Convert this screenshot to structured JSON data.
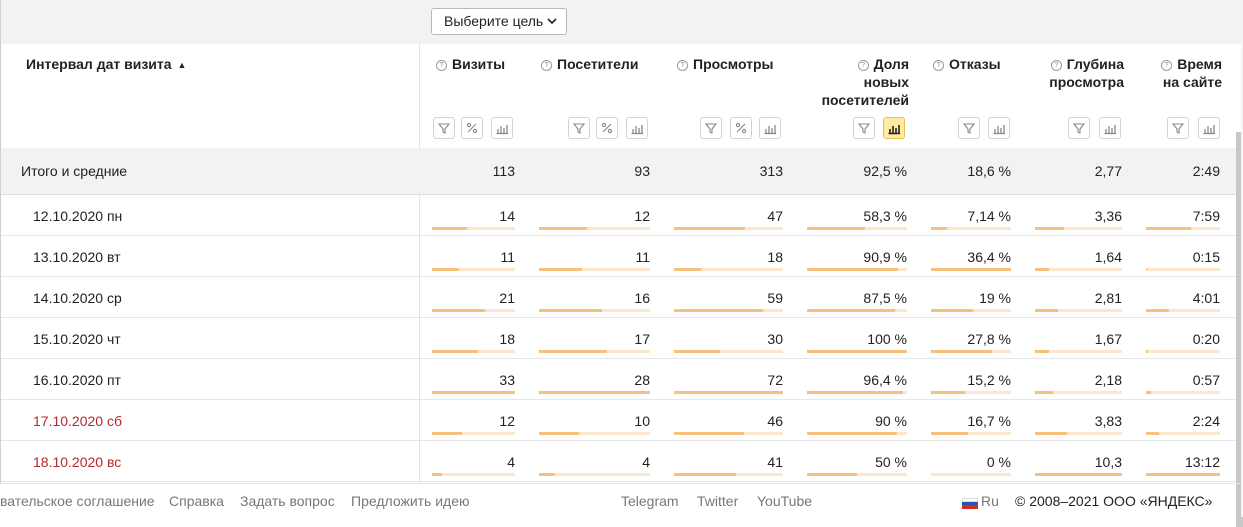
{
  "goal_selector": {
    "label": "Выберите цель"
  },
  "header": {
    "dimension_title": "Интервал дат визита",
    "sort_indicator": "▲",
    "columns": [
      {
        "key": "visits",
        "title_lines": [
          "Визиты"
        ],
        "tools": [
          "filter-icon",
          "percent-icon",
          "chart-icon"
        ]
      },
      {
        "key": "visitors",
        "title_lines": [
          "Посетители"
        ],
        "tools": [
          "filter-icon",
          "percent-icon",
          "chart-icon"
        ]
      },
      {
        "key": "views",
        "title_lines": [
          "Просмотры"
        ],
        "tools": [
          "filter-icon",
          "percent-icon",
          "chart-icon"
        ]
      },
      {
        "key": "new_share",
        "title_lines": [
          "Доля",
          "новых",
          "посетителей"
        ],
        "tools": [
          "filter-icon",
          "chart-icon"
        ],
        "active_tool": "chart-icon"
      },
      {
        "key": "bounces",
        "title_lines": [
          "Отказы"
        ],
        "tools": [
          "filter-icon",
          "chart-icon"
        ]
      },
      {
        "key": "depth",
        "title_lines": [
          "Глубина",
          "просмотра"
        ],
        "tools": [
          "filter-icon",
          "chart-icon"
        ]
      },
      {
        "key": "time",
        "title_lines": [
          "Время",
          "на сайте"
        ],
        "tools": [
          "filter-icon",
          "chart-icon"
        ]
      }
    ]
  },
  "totals": {
    "label": "Итого и средние",
    "values": [
      "113",
      "93",
      "313",
      "92,5 %",
      "18,6 %",
      "2,77",
      "2:49"
    ]
  },
  "rows": [
    {
      "date": "12.10.2020 пн",
      "weekend": false,
      "values": [
        "14",
        "12",
        "47",
        "58,3 %",
        "7,14 %",
        "3,36",
        "7:59"
      ],
      "fill": [
        0.42,
        0.43,
        0.65,
        0.58,
        0.2,
        0.33,
        0.61
      ]
    },
    {
      "date": "13.10.2020 вт",
      "weekend": false,
      "values": [
        "11",
        "11",
        "18",
        "90,9 %",
        "36,4 %",
        "1,64",
        "0:15"
      ],
      "fill": [
        0.33,
        0.39,
        0.25,
        0.91,
        1.0,
        0.16,
        0.02
      ]
    },
    {
      "date": "14.10.2020 ср",
      "weekend": false,
      "values": [
        "21",
        "16",
        "59",
        "87,5 %",
        "19 %",
        "2,81",
        "4:01"
      ],
      "fill": [
        0.64,
        0.57,
        0.82,
        0.875,
        0.52,
        0.27,
        0.31
      ]
    },
    {
      "date": "15.10.2020 чт",
      "weekend": false,
      "values": [
        "18",
        "17",
        "30",
        "100 %",
        "27,8 %",
        "1,67",
        "0:20"
      ],
      "fill": [
        0.55,
        0.61,
        0.42,
        1.0,
        0.76,
        0.16,
        0.03
      ]
    },
    {
      "date": "16.10.2020 пт",
      "weekend": false,
      "values": [
        "33",
        "28",
        "72",
        "96,4 %",
        "15,2 %",
        "2,18",
        "0:57"
      ],
      "fill": [
        1.0,
        1.0,
        1.0,
        0.964,
        0.42,
        0.21,
        0.07
      ]
    },
    {
      "date": "17.10.2020 сб",
      "weekend": true,
      "values": [
        "12",
        "10",
        "46",
        "90 %",
        "16,7 %",
        "3,83",
        "2:24"
      ],
      "fill": [
        0.36,
        0.36,
        0.64,
        0.9,
        0.46,
        0.37,
        0.18
      ]
    },
    {
      "date": "18.10.2020 вс",
      "weekend": true,
      "values": [
        "4",
        "4",
        "41",
        "50 %",
        "0 %",
        "10,3",
        "13:12"
      ],
      "fill": [
        0.12,
        0.14,
        0.57,
        0.5,
        0.0,
        1.0,
        1.0
      ]
    }
  ],
  "footer": {
    "links": [
      "вательское соглашение",
      "Справка",
      "Задать вопрос",
      "Предложить идею"
    ],
    "social": [
      "Telegram",
      "Twitter",
      "YouTube"
    ],
    "language": "Ru",
    "copyright": "© 2008–2021 ООО «ЯНДЕКС»"
  },
  "colors": {
    "bar_fill": "#f5c17d",
    "bar_track": "#fbe8cc",
    "weekend_text": "#b22a2a",
    "active_tool": "#ffeba0"
  }
}
